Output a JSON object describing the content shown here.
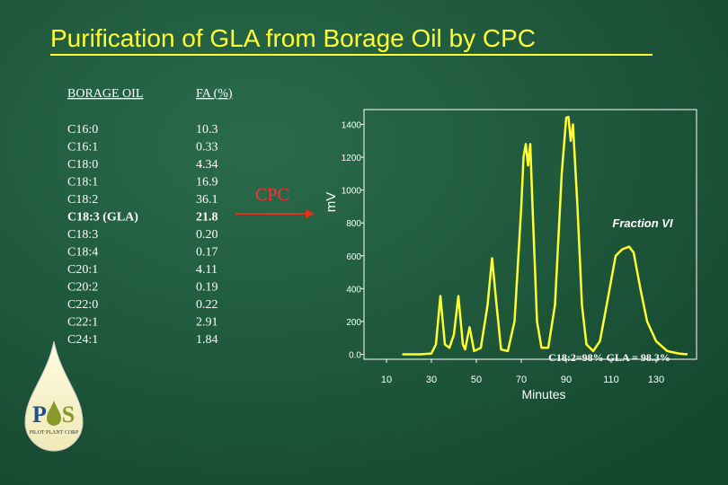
{
  "title": "Purification of GLA from Borage Oil  by CPC",
  "table": {
    "headers": [
      "BORAGE OIL",
      "FA (%)"
    ],
    "rows": [
      [
        "C16:0",
        "10.3"
      ],
      [
        "C16:1",
        "0.33"
      ],
      [
        "C18:0",
        "4.34"
      ],
      [
        "C18:1",
        "16.9"
      ],
      [
        "C18:2",
        "36.1"
      ],
      [
        "C18:3 (GLA)",
        "21.8"
      ],
      [
        "C18:3",
        "0.20"
      ],
      [
        "C18:4",
        "0.17"
      ],
      [
        "C20:1",
        "4.11"
      ],
      [
        "C20:2",
        "0.19"
      ],
      [
        "C22:0",
        "0.22"
      ],
      [
        "C22:1",
        "2.91"
      ],
      [
        "C24:1",
        "1.84"
      ]
    ],
    "highlight_row": 5
  },
  "arrow_label": "CPC",
  "logo": {
    "letters": [
      "P",
      "S"
    ],
    "name": "PILOT PLANT CORP"
  },
  "chart_data": {
    "type": "line",
    "ylabel": "mV",
    "xlabel": "Minutes",
    "annotations": [
      "Fraction VI",
      "C18:2=98%  GLA = 98.3%"
    ],
    "x": [
      17,
      25,
      30,
      32,
      34,
      36,
      38,
      40,
      42,
      44,
      45,
      47,
      49,
      52,
      55,
      57,
      59,
      61,
      64,
      67,
      70,
      71,
      72,
      73,
      74,
      75,
      77,
      79,
      82,
      85,
      88,
      90,
      91,
      92,
      93,
      95,
      97,
      99,
      102,
      105,
      108,
      112,
      115,
      118,
      120,
      123,
      126,
      130,
      135,
      140,
      144
    ],
    "series": [
      {
        "name": "trace",
        "color": "#ffff33",
        "values": [
          0,
          0,
          5,
          60,
          355,
          60,
          40,
          120,
          355,
          60,
          30,
          165,
          20,
          40,
          300,
          585,
          300,
          30,
          20,
          200,
          900,
          1200,
          1280,
          1150,
          1280,
          900,
          200,
          40,
          40,
          300,
          1100,
          1440,
          1445,
          1300,
          1400,
          900,
          300,
          60,
          20,
          80,
          300,
          600,
          640,
          655,
          620,
          400,
          200,
          80,
          20,
          5,
          0
        ]
      }
    ],
    "xlim": [
      0,
      148
    ],
    "ylim": [
      -30,
      1490
    ],
    "xticks": [
      10,
      30,
      50,
      70,
      90,
      110,
      130
    ],
    "yticks": [
      {
        "value": 0,
        "label": "0.0"
      },
      200,
      400,
      600,
      800,
      1000,
      1200,
      1400
    ]
  }
}
